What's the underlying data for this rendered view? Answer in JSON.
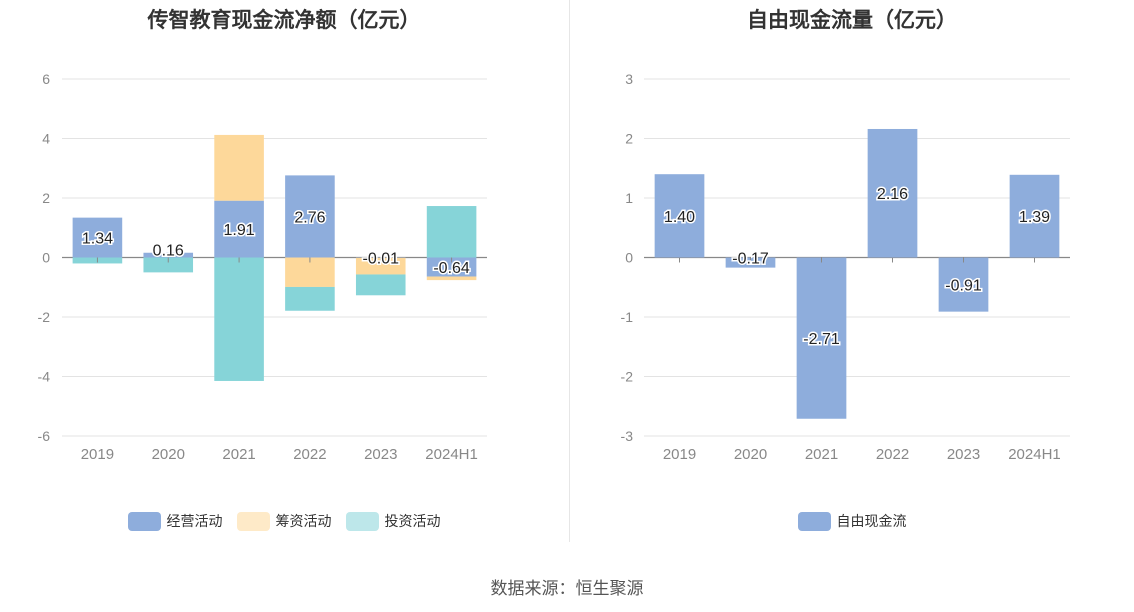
{
  "source": "数据来源：恒生聚源",
  "chart_data": [
    {
      "type": "bar",
      "stacked": true,
      "title": "传智教育现金流净额（亿元）",
      "categories": [
        "2019",
        "2020",
        "2021",
        "2022",
        "2023",
        "2024H1"
      ],
      "ylim": [
        -6,
        6
      ],
      "yticks": [
        6,
        4,
        2,
        0,
        -2,
        -4,
        -6
      ],
      "grid": true,
      "legend_position": "bottom",
      "series": [
        {
          "name": "经营活动",
          "color": "#8eaddc",
          "values": [
            1.34,
            0.16,
            1.91,
            2.76,
            -0.01,
            -0.64
          ]
        },
        {
          "name": "筹资活动",
          "color": "#fdd89a",
          "values": [
            0.0,
            0.0,
            2.21,
            -0.99,
            -0.56,
            -0.12
          ]
        },
        {
          "name": "投资活动",
          "color": "#86d4d8",
          "values": [
            -0.2,
            -0.5,
            -4.15,
            -0.8,
            -0.7,
            1.73
          ]
        }
      ],
      "data_labels": [
        "1.34",
        "0.16",
        "1.91",
        "2.76",
        "-0.01",
        "-0.64"
      ]
    },
    {
      "type": "bar",
      "title": "自由现金流量（亿元）",
      "categories": [
        "2019",
        "2020",
        "2021",
        "2022",
        "2023",
        "2024H1"
      ],
      "ylim": [
        -3,
        3
      ],
      "yticks": [
        3,
        2,
        1,
        0,
        -1,
        -2,
        -3
      ],
      "grid": true,
      "legend_position": "bottom",
      "series": [
        {
          "name": "自由现金流",
          "color": "#8eaddc",
          "values": [
            1.4,
            -0.17,
            -2.71,
            2.16,
            -0.91,
            1.39
          ]
        }
      ],
      "data_labels": [
        "1.40",
        "-0.17",
        "-2.71",
        "2.16",
        "-0.91",
        "1.39"
      ]
    }
  ]
}
